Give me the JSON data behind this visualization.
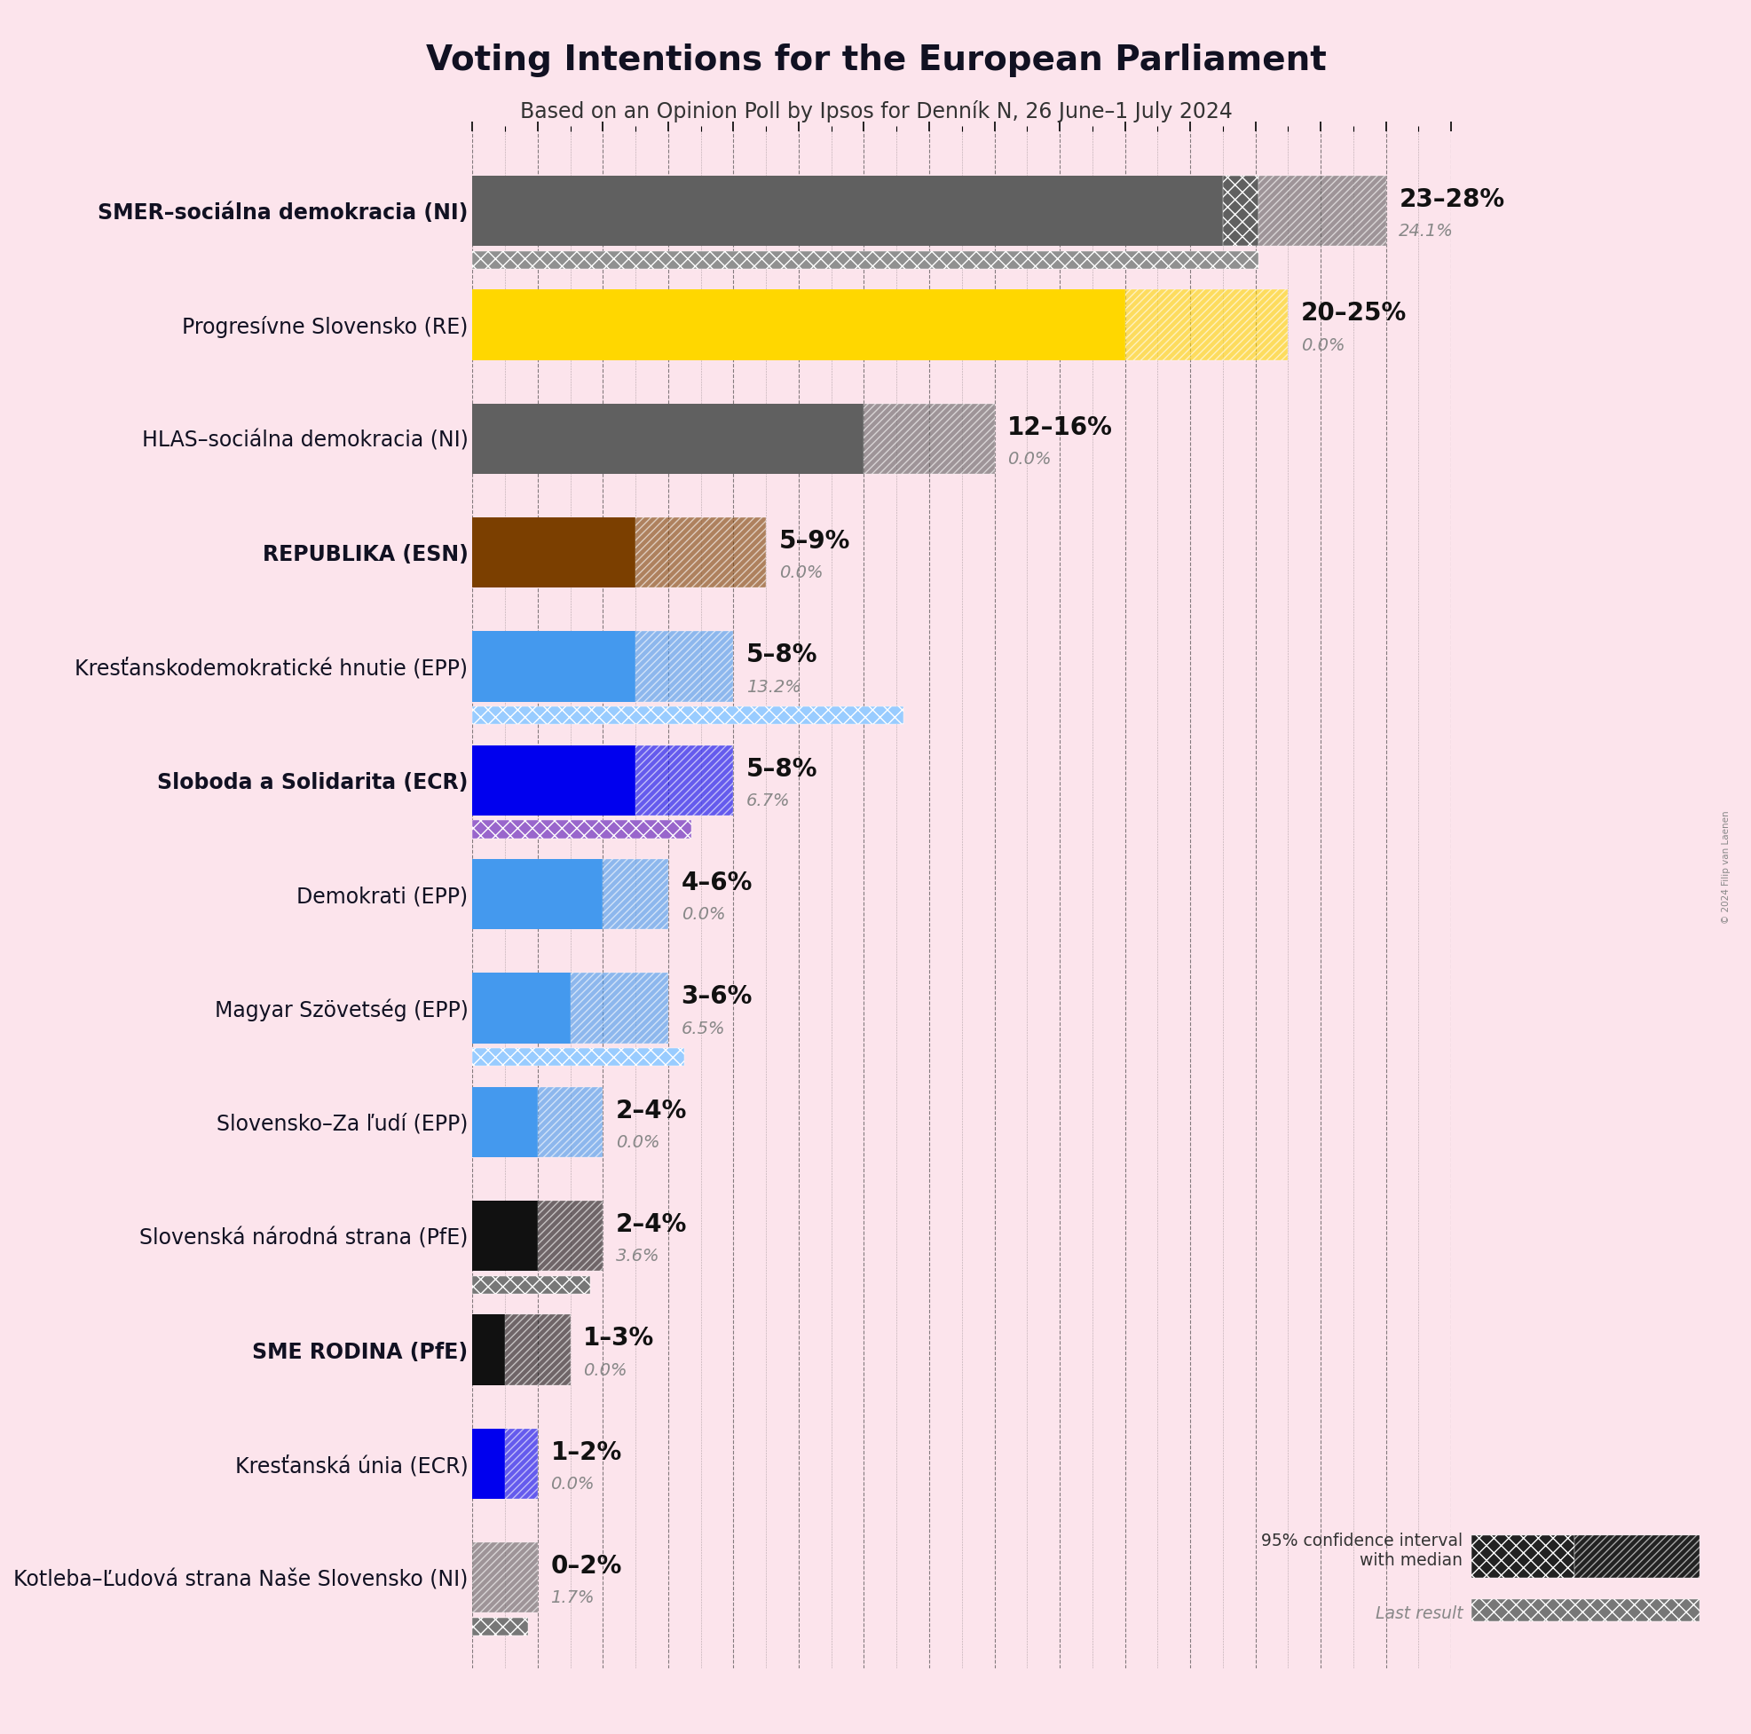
{
  "title": "Voting Intentions for the European Parliament",
  "subtitle": "Based on an Opinion Poll by Ipsos for Denník N, 26 June–1 July 2024",
  "copyright": "© 2024 Filip van Laenen",
  "background_color": "#fce4ec",
  "parties": [
    {
      "name": "SMER–sociálna demokracia (NI)",
      "low": 23,
      "median": 24.1,
      "high": 28,
      "last_result": 24.1,
      "color": "#606060",
      "last_color": "#909090",
      "label": "23–28%",
      "label2": "24.1%",
      "bold": true
    },
    {
      "name": "Progresívne Slovensko (RE)",
      "low": 20,
      "median": 20,
      "high": 25,
      "last_result": 0.0,
      "color": "#FFD700",
      "last_color": "#cccccc",
      "label": "20–25%",
      "label2": "0.0%",
      "bold": false
    },
    {
      "name": "HLAS–sociálna demokracia (NI)",
      "low": 12,
      "median": 12,
      "high": 16,
      "last_result": 0.0,
      "color": "#606060",
      "last_color": "#909090",
      "label": "12–16%",
      "label2": "0.0%",
      "bold": false
    },
    {
      "name": "REPUBLIKA (ESN)",
      "low": 5,
      "median": 5,
      "high": 9,
      "last_result": 0.0,
      "color": "#7B3F00",
      "last_color": "#cccccc",
      "label": "5–9%",
      "label2": "0.0%",
      "bold": true
    },
    {
      "name": "Kresťanskodemokratické hnutie (EPP)",
      "low": 5,
      "median": 5,
      "high": 8,
      "last_result": 13.2,
      "color": "#4499EE",
      "last_color": "#99CCFF",
      "label": "5–8%",
      "label2": "13.2%",
      "bold": false
    },
    {
      "name": "Sloboda a Solidarita (ECR)",
      "low": 5,
      "median": 5,
      "high": 8,
      "last_result": 6.7,
      "color": "#0000EE",
      "last_color": "#9966CC",
      "label": "5–8%",
      "label2": "6.7%",
      "bold": true
    },
    {
      "name": "Demokrati (EPP)",
      "low": 4,
      "median": 4,
      "high": 6,
      "last_result": 0.0,
      "color": "#4499EE",
      "last_color": "#cccccc",
      "label": "4–6%",
      "label2": "0.0%",
      "bold": false
    },
    {
      "name": "Magyar Szövetség (EPP)",
      "low": 3,
      "median": 3,
      "high": 6,
      "last_result": 6.5,
      "color": "#4499EE",
      "last_color": "#99CCFF",
      "label": "3–6%",
      "label2": "6.5%",
      "bold": false
    },
    {
      "name": "Slovensko–Za ľudí (EPP)",
      "low": 2,
      "median": 2,
      "high": 4,
      "last_result": 0.0,
      "color": "#4499EE",
      "last_color": "#cccccc",
      "label": "2–4%",
      "label2": "0.0%",
      "bold": false
    },
    {
      "name": "Slovenská národná strana (PfE)",
      "low": 2,
      "median": 2,
      "high": 4,
      "last_result": 3.6,
      "color": "#111111",
      "last_color": "#777777",
      "label": "2–4%",
      "label2": "3.6%",
      "bold": false
    },
    {
      "name": "SME RODINA (PfE)",
      "low": 1,
      "median": 1,
      "high": 3,
      "last_result": 0.0,
      "color": "#111111",
      "last_color": "#cccccc",
      "label": "1–3%",
      "label2": "0.0%",
      "bold": true
    },
    {
      "name": "Kresťanská únia (ECR)",
      "low": 1,
      "median": 1,
      "high": 2,
      "last_result": 0.0,
      "color": "#0000EE",
      "last_color": "#cccccc",
      "label": "1–2%",
      "label2": "0.0%",
      "bold": false
    },
    {
      "name": "Kotleba–Ľudová strana Naše Slovensko (NI)",
      "low": 0,
      "median": 0,
      "high": 2,
      "last_result": 1.7,
      "color": "#606060",
      "last_color": "#777777",
      "label": "0–2%",
      "label2": "1.7%",
      "bold": false
    }
  ],
  "xlim": [
    0,
    30
  ],
  "tick_interval": 2,
  "bar_height": 0.62,
  "last_bar_height": 0.16,
  "name_fontsize": 17,
  "label_fontsize": 20,
  "pct_fontsize": 14
}
